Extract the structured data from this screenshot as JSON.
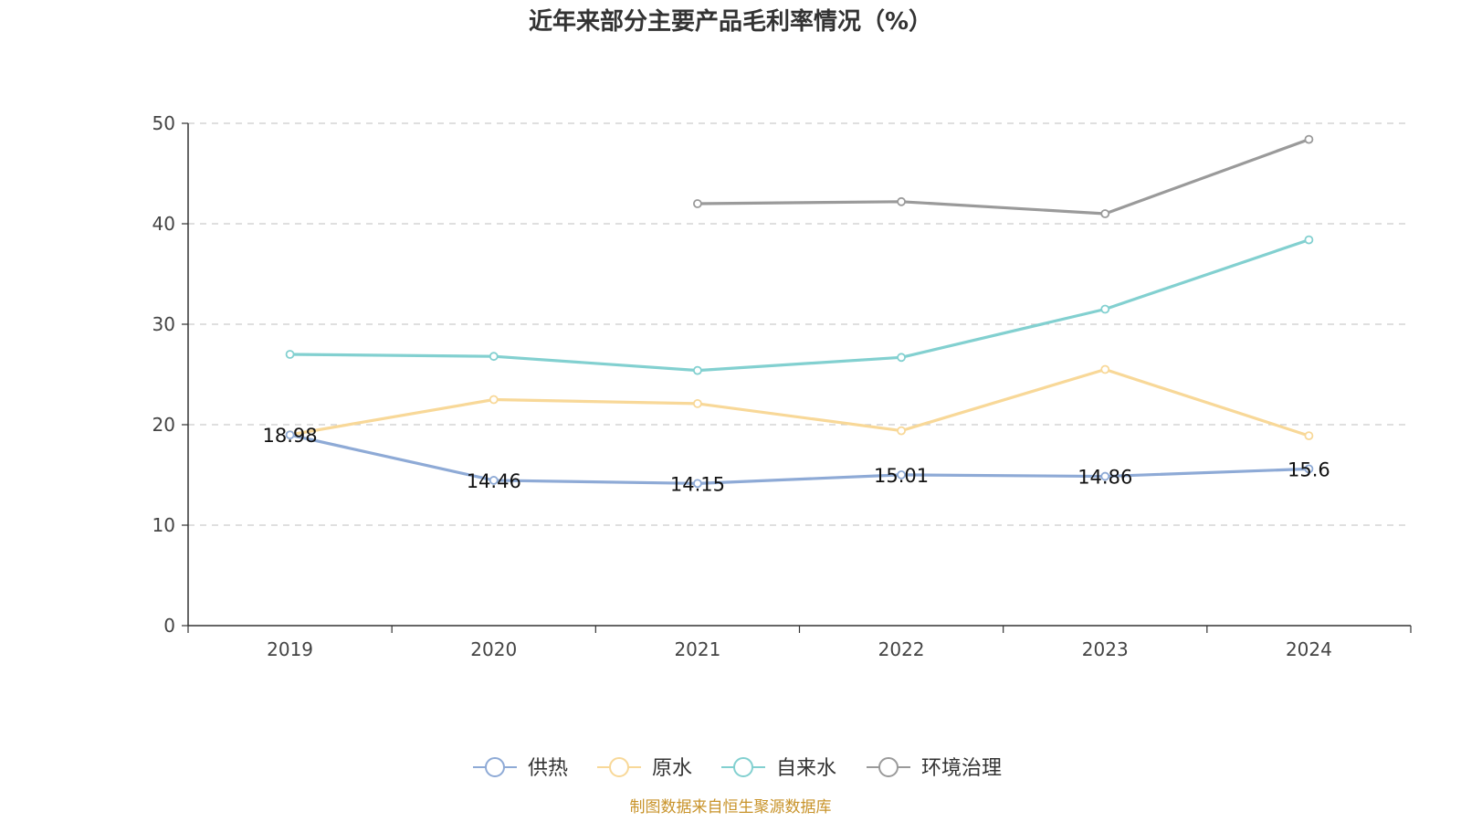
{
  "chart_data": {
    "type": "line",
    "title": "近年来部分主要产品毛利率情况（%）",
    "categories": [
      "2019",
      "2020",
      "2021",
      "2022",
      "2023",
      "2024"
    ],
    "ylim": [
      0,
      50
    ],
    "yticks": [
      "0",
      "10",
      "20",
      "30",
      "40",
      "50"
    ],
    "grid": true,
    "legend_position": "bottom",
    "series": [
      {
        "name": "供热",
        "color": "#8eaad6",
        "values": [
          18.98,
          14.46,
          14.15,
          15.01,
          14.86,
          15.6
        ],
        "labels": [
          "18.98",
          "14.46",
          "14.15",
          "15.01",
          "14.86",
          "15.6"
        ]
      },
      {
        "name": "原水",
        "color": "#f8d898",
        "values": [
          19.0,
          22.5,
          22.1,
          19.4,
          25.5,
          18.9
        ]
      },
      {
        "name": "自来水",
        "color": "#82d0d0",
        "values": [
          27.0,
          26.8,
          25.4,
          26.7,
          31.5,
          38.4
        ]
      },
      {
        "name": "环境治理",
        "color": "#9a9a9a",
        "values": [
          null,
          null,
          42.0,
          42.2,
          41.0,
          48.4
        ]
      }
    ]
  },
  "footer": {
    "source": "制图数据来自恒生聚源数据库"
  }
}
